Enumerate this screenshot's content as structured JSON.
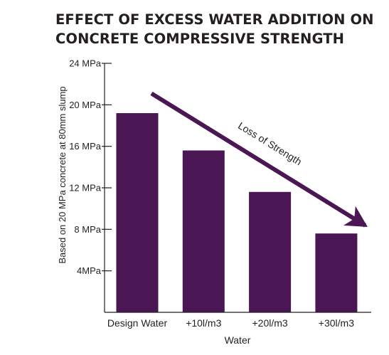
{
  "colors": {
    "bar": "#4a1654",
    "axis": "#231f20",
    "text": "#231f20"
  },
  "chart_data": {
    "type": "bar",
    "title": [
      "EFFECT OF EXCESS WATER ADDITION ON",
      "CONCRETE COMPRESSIVE STRENGTH"
    ],
    "xlabel": "Water",
    "ylabel": "Based on 20 MPa concrete at 80mm slump",
    "categories": [
      "Design Water",
      "+10l/m3",
      "+20l/m3",
      "+30l/m3"
    ],
    "values": [
      19.2,
      15.6,
      11.6,
      7.6
    ],
    "ylim": [
      0,
      24
    ],
    "yticks": [
      {
        "value": 4,
        "label": "4MPa"
      },
      {
        "value": 8,
        "label": "8 MPa"
      },
      {
        "value": 12,
        "label": "12 MPa"
      },
      {
        "value": 16,
        "label": "16 MPa"
      },
      {
        "value": 20,
        "label": "20 MPa"
      },
      {
        "value": 24,
        "label": "24 MPa"
      }
    ],
    "grid": false,
    "annotation": {
      "text": "Loss of Strength",
      "arrow_from": {
        "category": 0,
        "value": 21.3
      },
      "arrow_to": {
        "category": 3.5,
        "value": 8.3
      }
    }
  }
}
